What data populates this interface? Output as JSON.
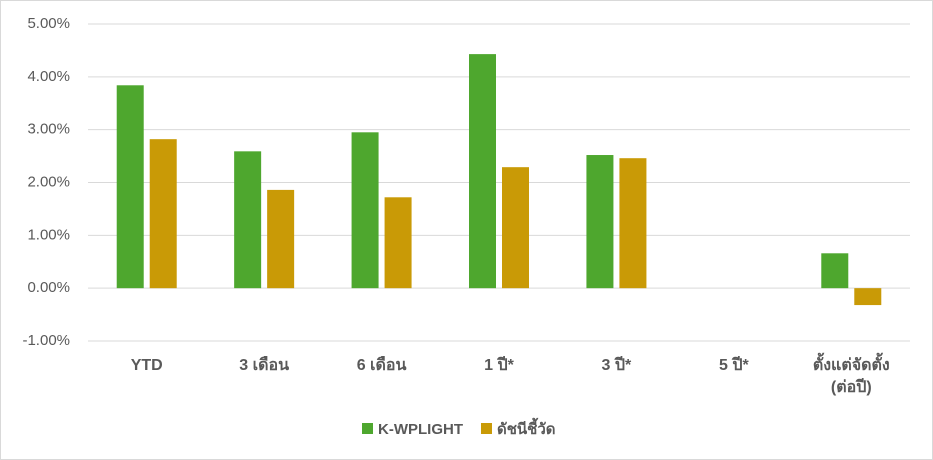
{
  "chart_data": {
    "type": "bar",
    "categories": [
      "YTD",
      "3 เดือน",
      "6 เดือน",
      "1 ปี*",
      "3 ปี*",
      "5 ปี*",
      "ตั้งแต่จัดตั้ง (ต่อปี)"
    ],
    "series": [
      {
        "name": "K-WPLIGHT",
        "color": "#4ea72e",
        "values": [
          3.84,
          2.59,
          2.95,
          4.43,
          2.52,
          null,
          0.66
        ]
      },
      {
        "name": "ดัชนีชี้วัด",
        "color": "#c99a06",
        "values": [
          2.82,
          1.86,
          1.72,
          2.29,
          2.46,
          null,
          -0.32
        ]
      }
    ],
    "ylim": [
      -1,
      5
    ],
    "yticks": [
      {
        "value": -1,
        "label": "-1.00%"
      },
      {
        "value": 0,
        "label": "0.00%"
      },
      {
        "value": 1,
        "label": "1.00%"
      },
      {
        "value": 2,
        "label": "2.00%"
      },
      {
        "value": 3,
        "label": "3.00%"
      },
      {
        "value": 4,
        "label": "4.00%"
      },
      {
        "value": 5,
        "label": "5.00%"
      }
    ],
    "grid": true
  }
}
